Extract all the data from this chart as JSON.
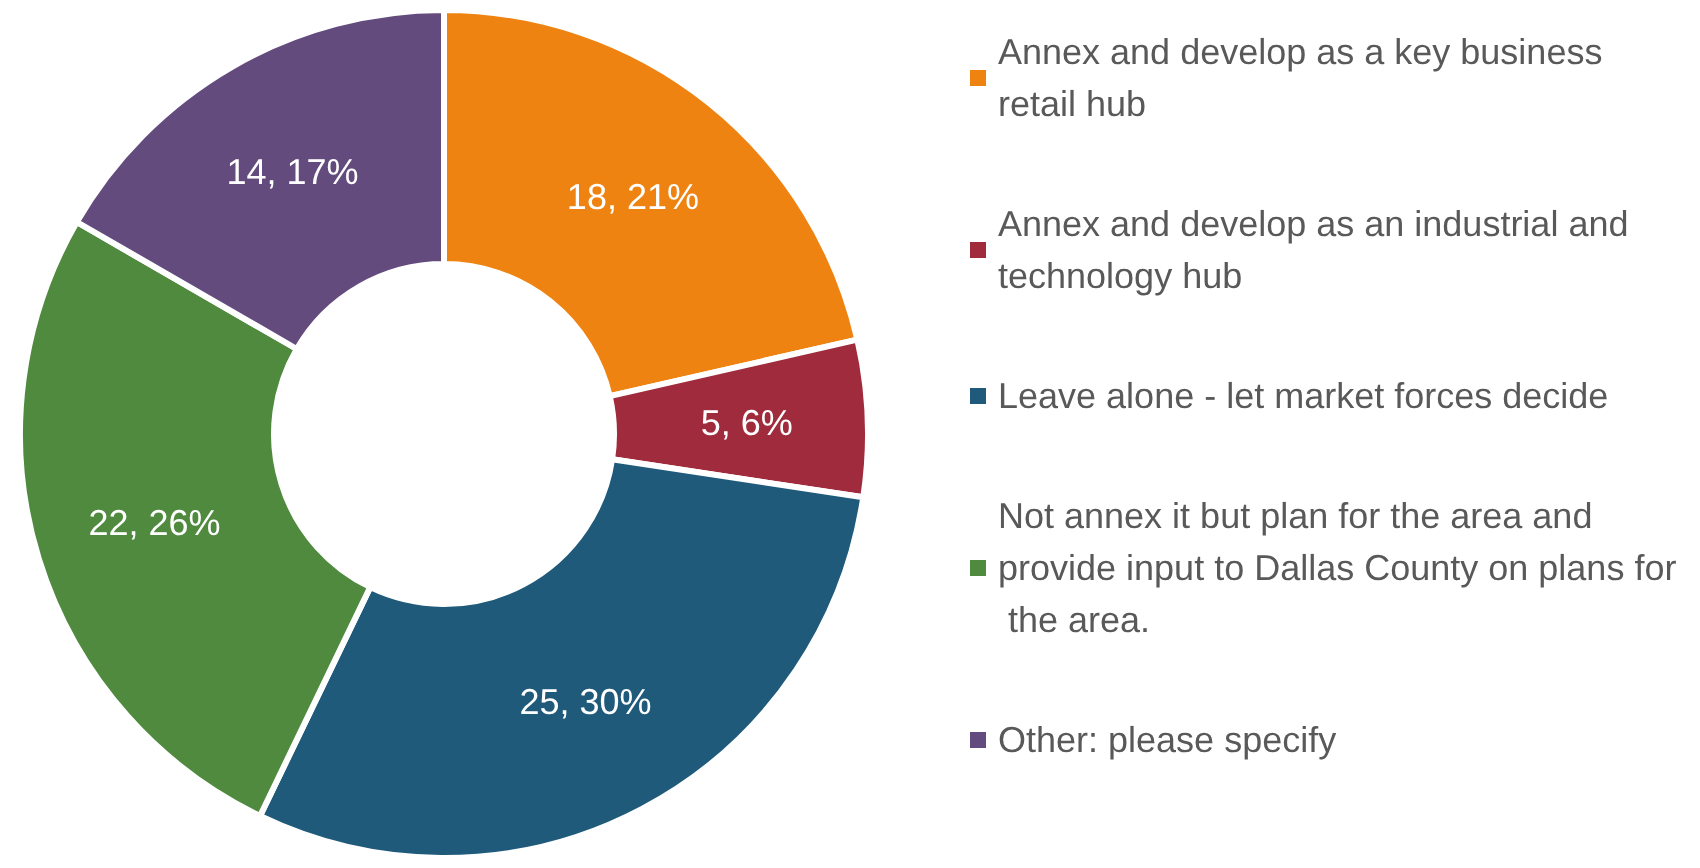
{
  "chart_data": {
    "type": "donut",
    "categories": [
      "Annex and develop as a key business retail hub",
      "Annex and develop as an industrial and technology hub",
      "Leave alone - let market forces decide",
      "Not annex it but plan for the area and provide input to Dallas County on plans for the area.",
      "Other: please specify"
    ],
    "values": [
      18,
      5,
      25,
      22,
      14
    ],
    "value_labels": [
      "18, 21%",
      "5, 6%",
      "25, 30%",
      "22, 26%",
      "14, 17%"
    ],
    "colors": [
      "#ef8311",
      "#a02b3c",
      "#1f5a7b",
      "#4f8a3f",
      "#634b7e"
    ],
    "legend": "right"
  }
}
